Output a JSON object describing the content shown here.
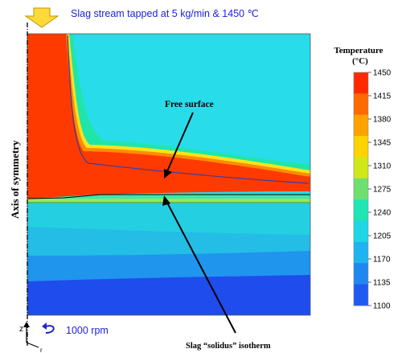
{
  "header": {
    "caption": "Slag stream tapped at 5 kg/min & 1450 ℃"
  },
  "plot": {
    "axis_label": "Axis of symmetry",
    "free_surface_label": "Free surface",
    "solidus_label": "Slag “solidus” isotherm",
    "rotation_label": "1000 rpm",
    "z_axis_label": "z",
    "r_axis_label": "r"
  },
  "legend": {
    "title_line1": "Temperature",
    "title_line2": "(°C)",
    "ticks": [
      "1450",
      "1415",
      "1380",
      "1345",
      "1310",
      "1275",
      "1240",
      "1205",
      "1170",
      "1135",
      "1100"
    ],
    "colors": [
      "#ff2a00",
      "#ff6a00",
      "#ffa200",
      "#ffd400",
      "#cfe81a",
      "#6fe06f",
      "#1fe6b4",
      "#1fd6e6",
      "#1fb4f0",
      "#1f88f0",
      "#1f5af0"
    ]
  },
  "icons": {
    "inlet_arrow": "down-arrow-icon",
    "rotation": "rotation-arrow-icon"
  }
}
